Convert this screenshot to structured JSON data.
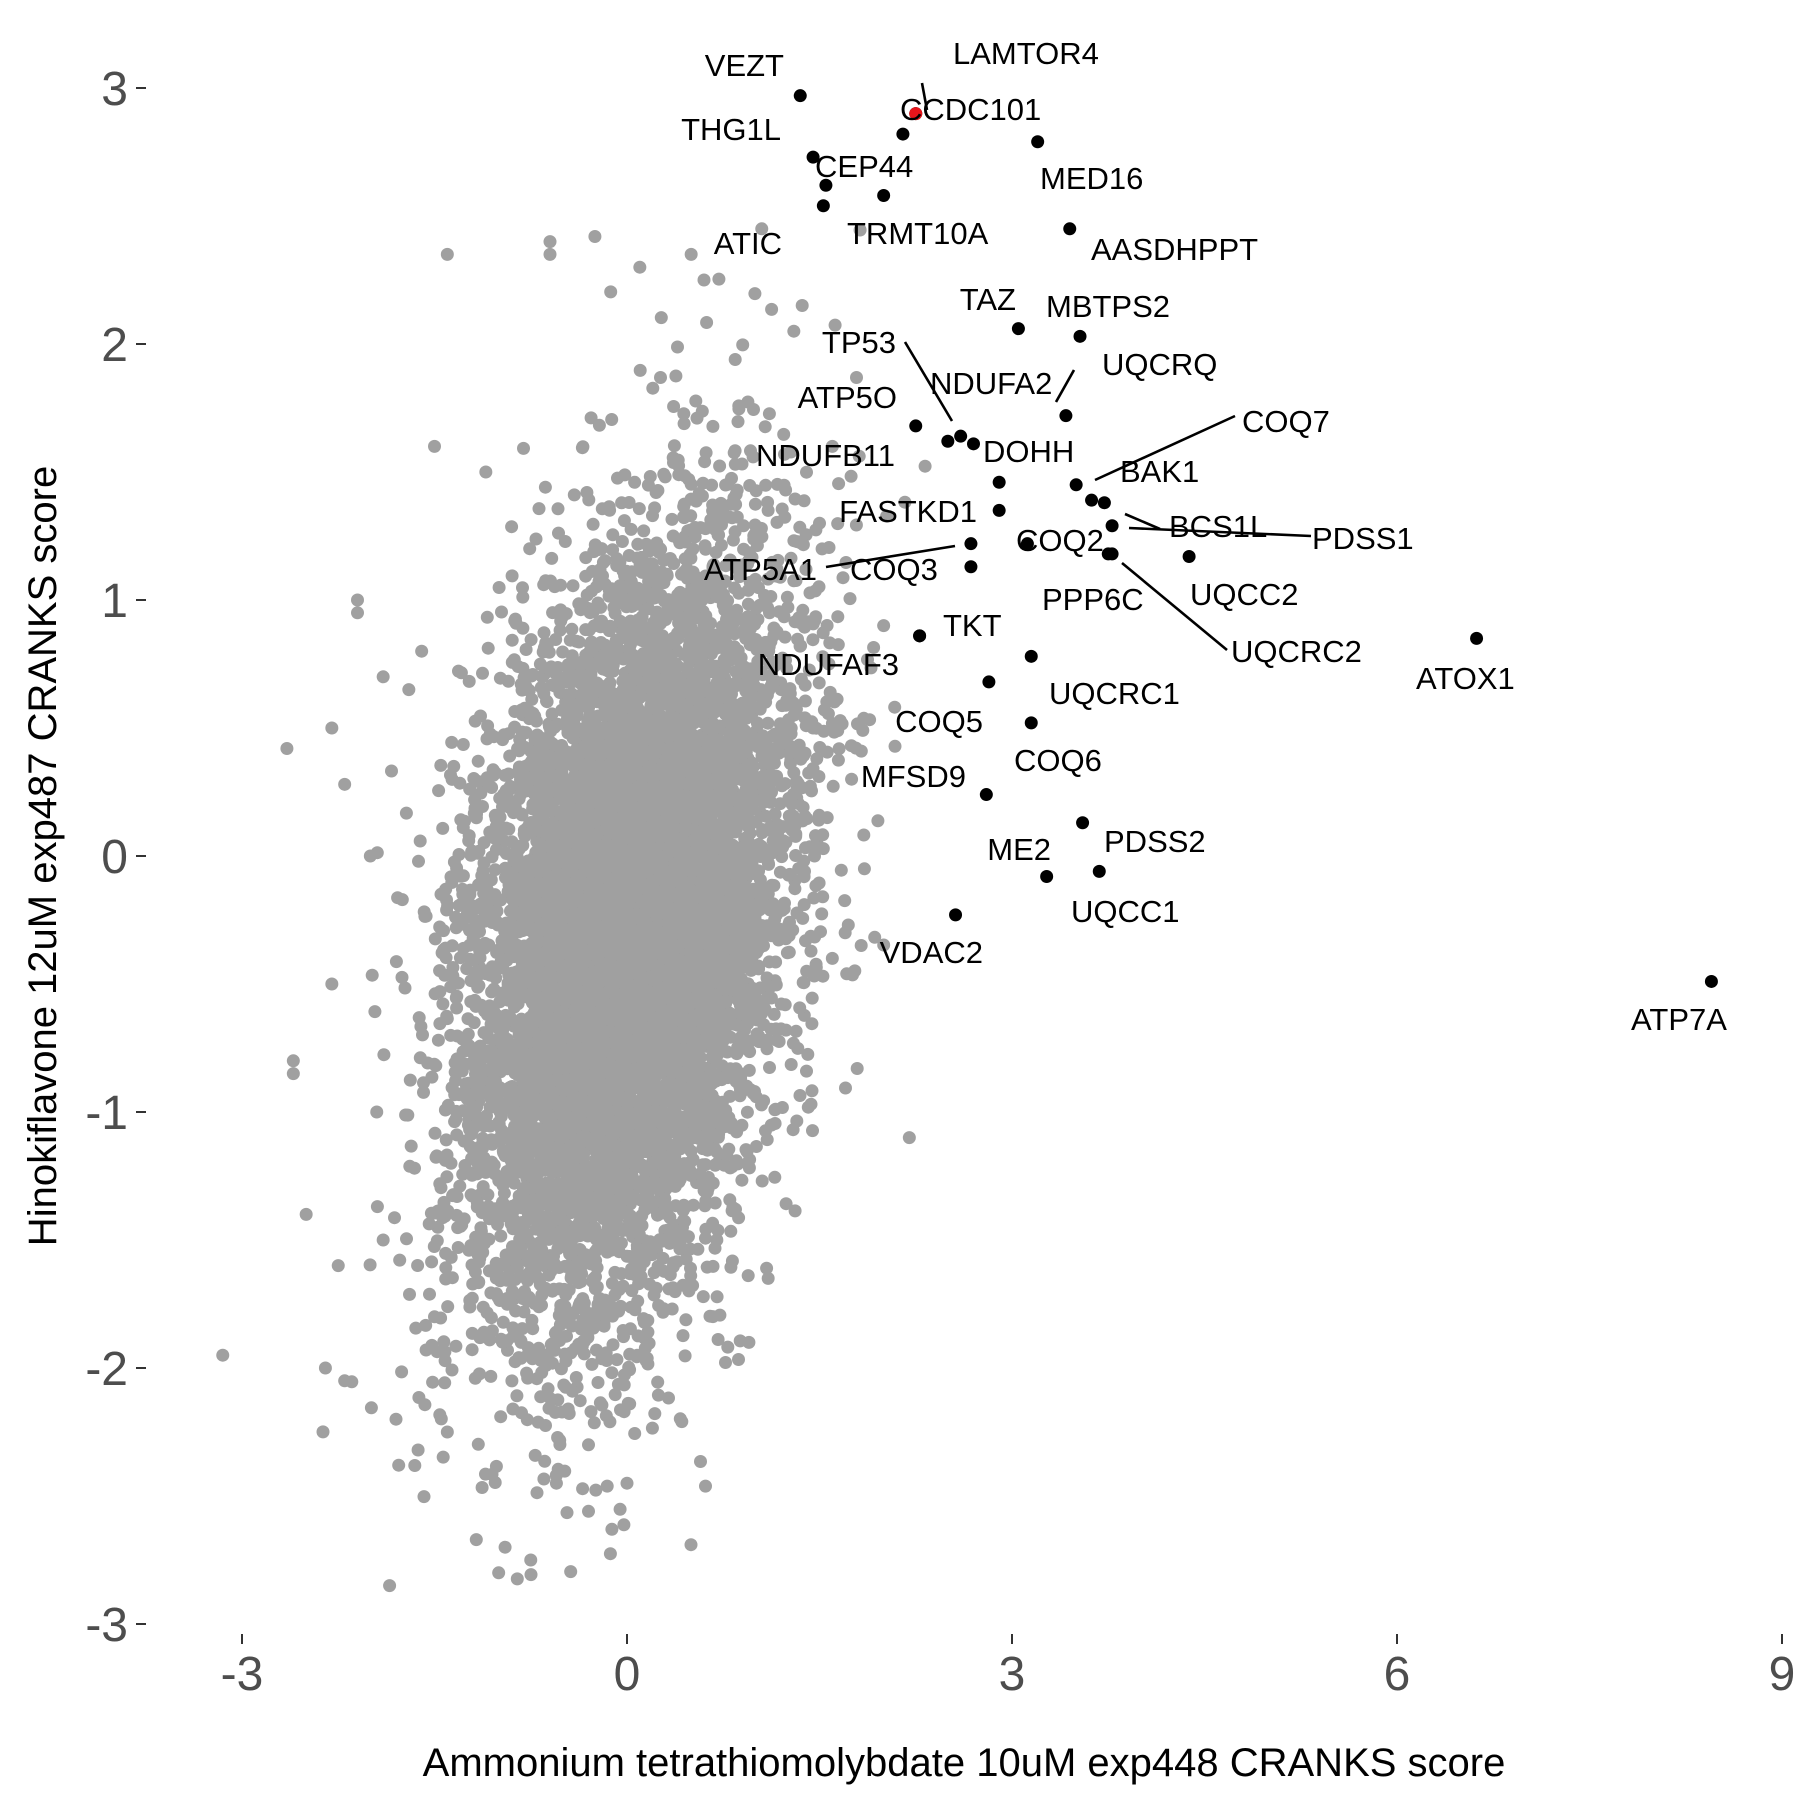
{
  "chart_data": {
    "type": "scatter",
    "title": "",
    "xlabel": "Ammonium tetrathiomolybdate 10uM exp448 CRANKS score",
    "ylabel": "Hinokiflavone 12uM exp487 CRANKS score",
    "xlim": [
      -3.6,
      9
    ],
    "ylim": [
      -3.1,
      3.3
    ],
    "x_ticks": [
      -3,
      0,
      3,
      6,
      9
    ],
    "x_tick_labels": [
      "-3",
      "0",
      "3",
      "6",
      "9"
    ],
    "y_ticks": [
      -3,
      -2,
      -1,
      0,
      1,
      2,
      3
    ],
    "y_tick_labels": [
      "-3",
      "-2",
      "-1",
      "0",
      "1",
      "2",
      "3"
    ],
    "grid": false,
    "legend": "none",
    "colors": {
      "background": "#ffffff",
      "background_points": "#a0a0a0",
      "highlight_points": "#000000",
      "special_point": "#e8151b",
      "tick_text": "#4d4d4d"
    },
    "background_cloud": {
      "description_color": "#a0a0a0",
      "center": [
        0,
        -0.3
      ],
      "points": [
        [
          -3.15,
          -1.95
        ],
        [
          -2.65,
          0.42
        ],
        [
          -2.6,
          -0.8
        ],
        [
          -2.6,
          -0.85
        ],
        [
          -2.5,
          -1.4
        ],
        [
          -2.3,
          0.5
        ],
        [
          -2.35,
          -2.0
        ],
        [
          -2.2,
          -2.05
        ],
        [
          -2.25,
          -1.6
        ],
        [
          -2.2,
          0.28
        ],
        [
          -2.1,
          0.95
        ],
        [
          -2.1,
          1.0
        ],
        [
          -1.9,
          0.7
        ],
        [
          -1.85,
          -2.85
        ],
        [
          -1.9,
          -1.5
        ],
        [
          -1.7,
          0.65
        ],
        [
          -1.6,
          0.8
        ],
        [
          -1.5,
          1.6
        ],
        [
          -1.4,
          -2.25
        ],
        [
          -1.35,
          0.35
        ],
        [
          -1.8,
          -2.2
        ],
        [
          -1.95,
          -1.0
        ],
        [
          -2.0,
          0.0
        ],
        [
          -2.3,
          -0.5
        ],
        [
          -0.55,
          -2.45
        ],
        [
          -0.75,
          -2.75
        ],
        [
          -0.95,
          -2.7
        ],
        [
          -1.0,
          -2.8
        ],
        [
          -0.6,
          2.4
        ],
        [
          -0.25,
          2.42
        ],
        [
          -0.6,
          2.35
        ],
        [
          -1.4,
          2.35
        ],
        [
          0.1,
          2.3
        ],
        [
          0.5,
          2.35
        ],
        [
          -0.3,
          -2.3
        ],
        [
          0.0,
          -2.45
        ],
        [
          0.6,
          2.25
        ],
        [
          1.3,
          2.05
        ],
        [
          0.95,
          -1.9
        ],
        [
          1.05,
          2.45
        ],
        [
          1.5,
          1.3
        ],
        [
          2.2,
          -1.1
        ],
        [
          1.7,
          -0.3
        ],
        [
          1.85,
          -0.05
        ],
        [
          1.6,
          -0.4
        ],
        [
          1.4,
          -0.45
        ],
        [
          1.45,
          0.5
        ],
        [
          1.75,
          0.3
        ],
        [
          2.0,
          0.9
        ],
        [
          1.6,
          1.6
        ],
        [
          1.1,
          -1.65
        ],
        [
          0.7,
          -1.5
        ],
        [
          -1.1,
          1.5
        ],
        [
          -1.5,
          -1.8
        ]
      ],
      "ellipse_rx": 1.3,
      "ellipse_ry": 1.7
    },
    "series": [
      {
        "name": "highlighted",
        "points": [
          {
            "label": "VEZT",
            "x": 1.35,
            "y": 2.97
          },
          {
            "label": "LAMTOR4",
            "x": 2.25,
            "y": 2.9
          },
          {
            "label": "CCDC101",
            "x": 2.15,
            "y": 2.82
          },
          {
            "label": "THG1L",
            "x": 1.45,
            "y": 2.73
          },
          {
            "label": "CEP44",
            "x": 1.55,
            "y": 2.62
          },
          {
            "label": "ATIC",
            "x": 1.53,
            "y": 2.54
          },
          {
            "label": "TRMT10A",
            "x": 2.0,
            "y": 2.58
          },
          {
            "label": "MED16",
            "x": 3.2,
            "y": 2.79
          },
          {
            "label": "AASDHPPT",
            "x": 3.45,
            "y": 2.45
          },
          {
            "label": "TAZ",
            "x": 3.05,
            "y": 2.06
          },
          {
            "label": "MBTPS2",
            "x": 3.53,
            "y": 2.03
          },
          {
            "label": "UQCRQ",
            "x": 3.42,
            "y": 1.72
          },
          {
            "label": "ATP5O",
            "x": 2.25,
            "y": 1.68
          },
          {
            "label": "TP53",
            "x": 2.5,
            "y": 1.62
          },
          {
            "label": "NDUFA2",
            "x": 2.6,
            "y": 1.64
          },
          {
            "label": "DOHH",
            "x": 2.7,
            "y": 1.61
          },
          {
            "label": "NDUFB11",
            "x": 2.9,
            "y": 1.46
          },
          {
            "label": "COQ7",
            "x": 3.5,
            "y": 1.45
          },
          {
            "label": "FASTKD1",
            "x": 2.9,
            "y": 1.35
          },
          {
            "label": "BAK1",
            "x": 3.62,
            "y": 1.39
          },
          {
            "label": "BCS1L",
            "x": 3.72,
            "y": 1.38
          },
          {
            "label": "PDSS1",
            "x": 3.78,
            "y": 1.29
          },
          {
            "label": "COQ2",
            "x": 3.12,
            "y": 1.22
          },
          {
            "label": "ATP5A1",
            "x": 2.68,
            "y": 1.22
          },
          {
            "label": "COQ3",
            "x": 2.68,
            "y": 1.13
          },
          {
            "label": "PPP6C",
            "x": 3.75,
            "y": 1.18
          },
          {
            "label": "UQCC2",
            "x": 4.38,
            "y": 1.17
          },
          {
            "label": "UQCRC2",
            "x": 3.78,
            "y": 1.18
          },
          {
            "label": "ATOX1",
            "x": 6.62,
            "y": 0.85
          },
          {
            "label": "TKT",
            "x": 2.28,
            "y": 0.86
          },
          {
            "label": "NDUFAF3",
            "x": 2.28,
            "y": 0.86
          },
          {
            "label": "UQCRC1",
            "x": 3.15,
            "y": 0.78
          },
          {
            "label": "COQ5",
            "x": 2.82,
            "y": 0.68
          },
          {
            "label": "COQ6",
            "x": 3.15,
            "y": 0.52
          },
          {
            "label": "MFSD9",
            "x": 2.8,
            "y": 0.24
          },
          {
            "label": "PDSS2",
            "x": 3.55,
            "y": 0.13
          },
          {
            "label": "ME2",
            "x": 3.27,
            "y": -0.08
          },
          {
            "label": "UQCC1",
            "x": 3.68,
            "y": -0.06
          },
          {
            "label": "VDAC2",
            "x": 2.56,
            "y": -0.23
          },
          {
            "label": "ATP7A",
            "x": 8.45,
            "y": -0.49
          }
        ]
      }
    ],
    "special_point": {
      "label": "LAMTOR4",
      "x": 2.25,
      "y": 2.9
    },
    "label_texts": [
      "VEZT",
      "LAMTOR4",
      "CCDC101",
      "THG1L",
      "CEP44",
      "ATIC",
      "TRMT10A",
      "MED16",
      "AASDHPPT",
      "TAZ",
      "MBTPS2",
      "UQCRQ",
      "TP53",
      "NDUFA2",
      "ATP5O",
      "COQ7",
      "NDUFB11",
      "DOHH",
      "BAK1",
      "FASTKD1",
      "BCS1L",
      "PDSS1",
      "COQ2",
      "ATP5A1",
      "COQ3",
      "UQCC2",
      "PPP6C",
      "UQCRC2",
      "TKT",
      "ATOX1",
      "NDUFAF3",
      "UQCRC1",
      "COQ5",
      "COQ6",
      "MFSD9",
      "PDSS2",
      "ME2",
      "UQCC1",
      "VDAC2",
      "ATP7A"
    ]
  }
}
